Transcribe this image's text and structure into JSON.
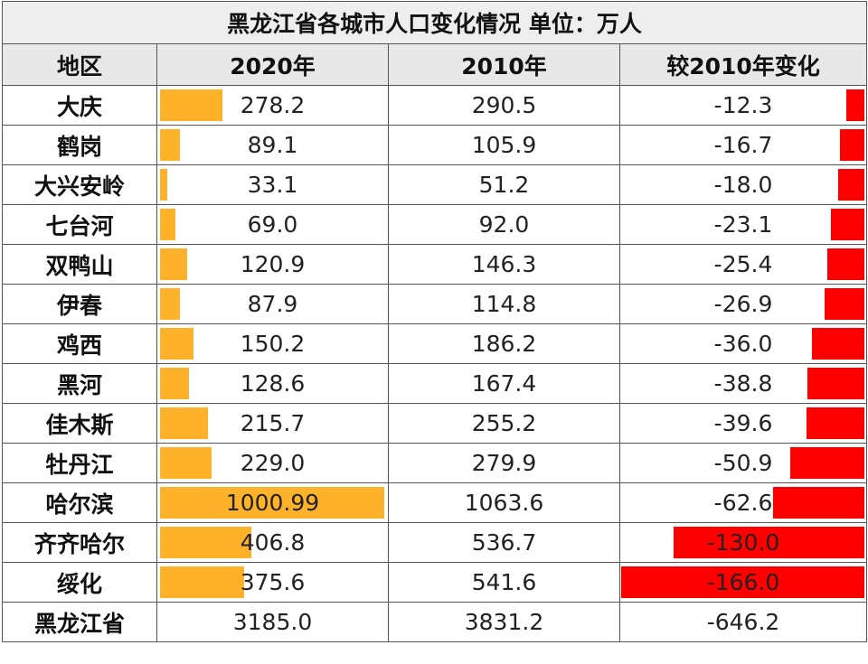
{
  "title": "黑龙江省各城市人口变化情况  单位：万人",
  "headers": [
    "地区",
    "2020年",
    "2010年",
    "较2010年变化"
  ],
  "colors": {
    "bar_2020": "#fdb22a",
    "bar_change": "#ff0000",
    "header_bg": "#e8e8e8"
  },
  "rows": [
    {
      "name": "大庆",
      "y2020": "278.2",
      "y2010": "290.5",
      "change": "-12.3"
    },
    {
      "name": "鹤岗",
      "y2020": "89.1",
      "y2010": "105.9",
      "change": "-16.7"
    },
    {
      "name": "大兴安岭",
      "y2020": "33.1",
      "y2010": "51.2",
      "change": "-18.0"
    },
    {
      "name": "七台河",
      "y2020": "69.0",
      "y2010": "92.0",
      "change": "-23.1"
    },
    {
      "name": "双鸭山",
      "y2020": "120.9",
      "y2010": "146.3",
      "change": "-25.4"
    },
    {
      "name": "伊春",
      "y2020": "87.9",
      "y2010": "114.8",
      "change": "-26.9"
    },
    {
      "name": "鸡西",
      "y2020": "150.2",
      "y2010": "186.2",
      "change": "-36.0"
    },
    {
      "name": "黑河",
      "y2020": "128.6",
      "y2010": "167.4",
      "change": "-38.8"
    },
    {
      "name": "佳木斯",
      "y2020": "215.7",
      "y2010": "255.2",
      "change": "-39.6"
    },
    {
      "name": "牡丹江",
      "y2020": "229.0",
      "y2010": "279.9",
      "change": "-50.9"
    },
    {
      "name": "哈尔滨",
      "y2020": "1000.99",
      "y2010": "1063.6",
      "change": "-62.6"
    },
    {
      "name": "齐齐哈尔",
      "y2020": "406.8",
      "y2010": "536.7",
      "change": "-130.0"
    },
    {
      "name": "绥化",
      "y2020": "375.6",
      "y2010": "541.6",
      "change": "-166.0"
    }
  ],
  "total": {
    "name": "黑龙江省",
    "y2020": "3185.0",
    "y2010": "3831.2",
    "change": "-646.2"
  }
}
